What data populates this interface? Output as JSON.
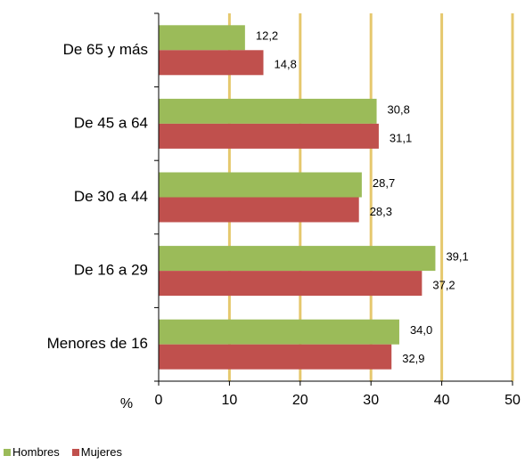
{
  "chart_data": {
    "type": "bar",
    "orientation": "horizontal",
    "categories": [
      "De 65 y más",
      "De 45 a 64",
      "De 30 a 44",
      "De 16 a 29",
      "Menores de 16"
    ],
    "series": [
      {
        "name": "Hombres",
        "color": "#9BBB59",
        "values": [
          12.2,
          30.8,
          28.7,
          39.1,
          34.0
        ],
        "labels": [
          "12,2",
          "30,8",
          "28,7",
          "39,1",
          "34,0"
        ]
      },
      {
        "name": "Mujeres",
        "color": "#C0504D",
        "values": [
          14.8,
          31.1,
          28.3,
          37.2,
          32.9
        ],
        "labels": [
          "14,8",
          "31,1",
          "28,3",
          "37,2",
          "32,9"
        ]
      }
    ],
    "xlabel": "%",
    "xlim": [
      0,
      50
    ],
    "xticks": [
      0,
      10,
      20,
      30,
      40,
      50
    ],
    "grid": true,
    "grid_color": "#E6C86E",
    "legend_position": "bottom-left"
  }
}
